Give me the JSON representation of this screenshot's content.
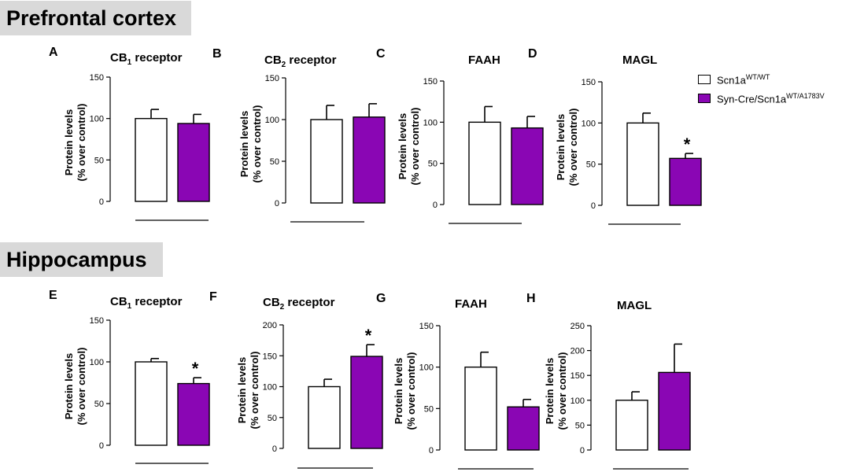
{
  "sections": [
    {
      "title": "Prefrontal cortex"
    },
    {
      "title": "Hippocampus"
    }
  ],
  "legend": [
    {
      "base": "Scn1a",
      "sup": "WT/WT",
      "color": "#ffffff"
    },
    {
      "base": "Syn-Cre/Scn1a",
      "sup": "WT/A1783V",
      "color": "#8a06b4"
    }
  ],
  "y_label": [
    "Protein levels",
    "(% over control)"
  ],
  "colors": {
    "control": "#ffffff",
    "mutant": "#8a06b4",
    "stroke": "#000000"
  },
  "chart_data": [
    {
      "type": "bar",
      "panel": "A",
      "title_main": "CB",
      "title_sub": "1",
      "title_rest": " receptor",
      "categories": [
        "Scn1aWT/WT",
        "Syn-Cre/Scn1aWT/A1783V"
      ],
      "values": [
        100,
        94
      ],
      "errors": [
        11,
        11
      ],
      "significant": [
        false,
        false
      ],
      "ylim": [
        0,
        150
      ],
      "yticks": [
        0,
        50,
        100,
        150
      ],
      "ylabel": "Protein levels (% over control)"
    },
    {
      "type": "bar",
      "panel": "B",
      "title_main": "CB",
      "title_sub": "2",
      "title_rest": " receptor",
      "categories": [
        "Scn1aWT/WT",
        "Syn-Cre/Scn1aWT/A1783V"
      ],
      "values": [
        100,
        103
      ],
      "errors": [
        17,
        16
      ],
      "significant": [
        false,
        false
      ],
      "ylim": [
        0,
        150
      ],
      "yticks": [
        0,
        50,
        100,
        150
      ],
      "ylabel": "Protein levels (% over control)"
    },
    {
      "type": "bar",
      "panel": "C",
      "title_main": "FAAH",
      "title_sub": "",
      "title_rest": "",
      "categories": [
        "Scn1aWT/WT",
        "Syn-Cre/Scn1aWT/A1783V"
      ],
      "values": [
        100,
        93
      ],
      "errors": [
        19,
        14
      ],
      "significant": [
        false,
        false
      ],
      "ylim": [
        0,
        150
      ],
      "yticks": [
        0,
        50,
        100,
        150
      ],
      "ylabel": "Protein levels (% over control)"
    },
    {
      "type": "bar",
      "panel": "D",
      "title_main": "MAGL",
      "title_sub": "",
      "title_rest": "",
      "categories": [
        "Scn1aWT/WT",
        "Syn-Cre/Scn1aWT/A1783V"
      ],
      "values": [
        100,
        57
      ],
      "errors": [
        12,
        6
      ],
      "significant": [
        false,
        true
      ],
      "ylim": [
        0,
        150
      ],
      "yticks": [
        0,
        50,
        100,
        150
      ],
      "ylabel": "Protein levels (% over control)"
    },
    {
      "type": "bar",
      "panel": "E",
      "title_main": "CB",
      "title_sub": "1",
      "title_rest": " receptor",
      "categories": [
        "Scn1aWT/WT",
        "Syn-Cre/Scn1aWT/A1783V"
      ],
      "values": [
        100,
        74
      ],
      "errors": [
        4,
        7
      ],
      "significant": [
        false,
        true
      ],
      "ylim": [
        0,
        150
      ],
      "yticks": [
        0,
        50,
        100,
        150
      ],
      "ylabel": "Protein levels (% over control)"
    },
    {
      "type": "bar",
      "panel": "F",
      "title_main": "CB",
      "title_sub": "2",
      "title_rest": " receptor",
      "categories": [
        "Scn1aWT/WT",
        "Syn-Cre/Scn1aWT/A1783V"
      ],
      "values": [
        100,
        149
      ],
      "errors": [
        12,
        19
      ],
      "significant": [
        false,
        true
      ],
      "ylim": [
        0,
        200
      ],
      "yticks": [
        0,
        50,
        100,
        150,
        200
      ],
      "ylabel": "Protein levels (% over control)"
    },
    {
      "type": "bar",
      "panel": "G",
      "title_main": "FAAH",
      "title_sub": "",
      "title_rest": "",
      "categories": [
        "Scn1aWT/WT",
        "Syn-Cre/Scn1aWT/A1783V"
      ],
      "values": [
        100,
        52
      ],
      "errors": [
        18,
        9
      ],
      "significant": [
        false,
        false
      ],
      "ylim": [
        0,
        150
      ],
      "yticks": [
        0,
        50,
        100,
        150
      ],
      "ylabel": "Protein levels (% over control)"
    },
    {
      "type": "bar",
      "panel": "H",
      "title_main": "MAGL",
      "title_sub": "",
      "title_rest": "",
      "categories": [
        "Scn1aWT/WT",
        "Syn-Cre/Scn1aWT/A1783V"
      ],
      "values": [
        100,
        156
      ],
      "errors": [
        17,
        57
      ],
      "significant": [
        false,
        false
      ],
      "ylim": [
        0,
        250
      ],
      "yticks": [
        0,
        50,
        100,
        150,
        200,
        250
      ],
      "ylabel": "Protein levels (% over control)"
    }
  ]
}
